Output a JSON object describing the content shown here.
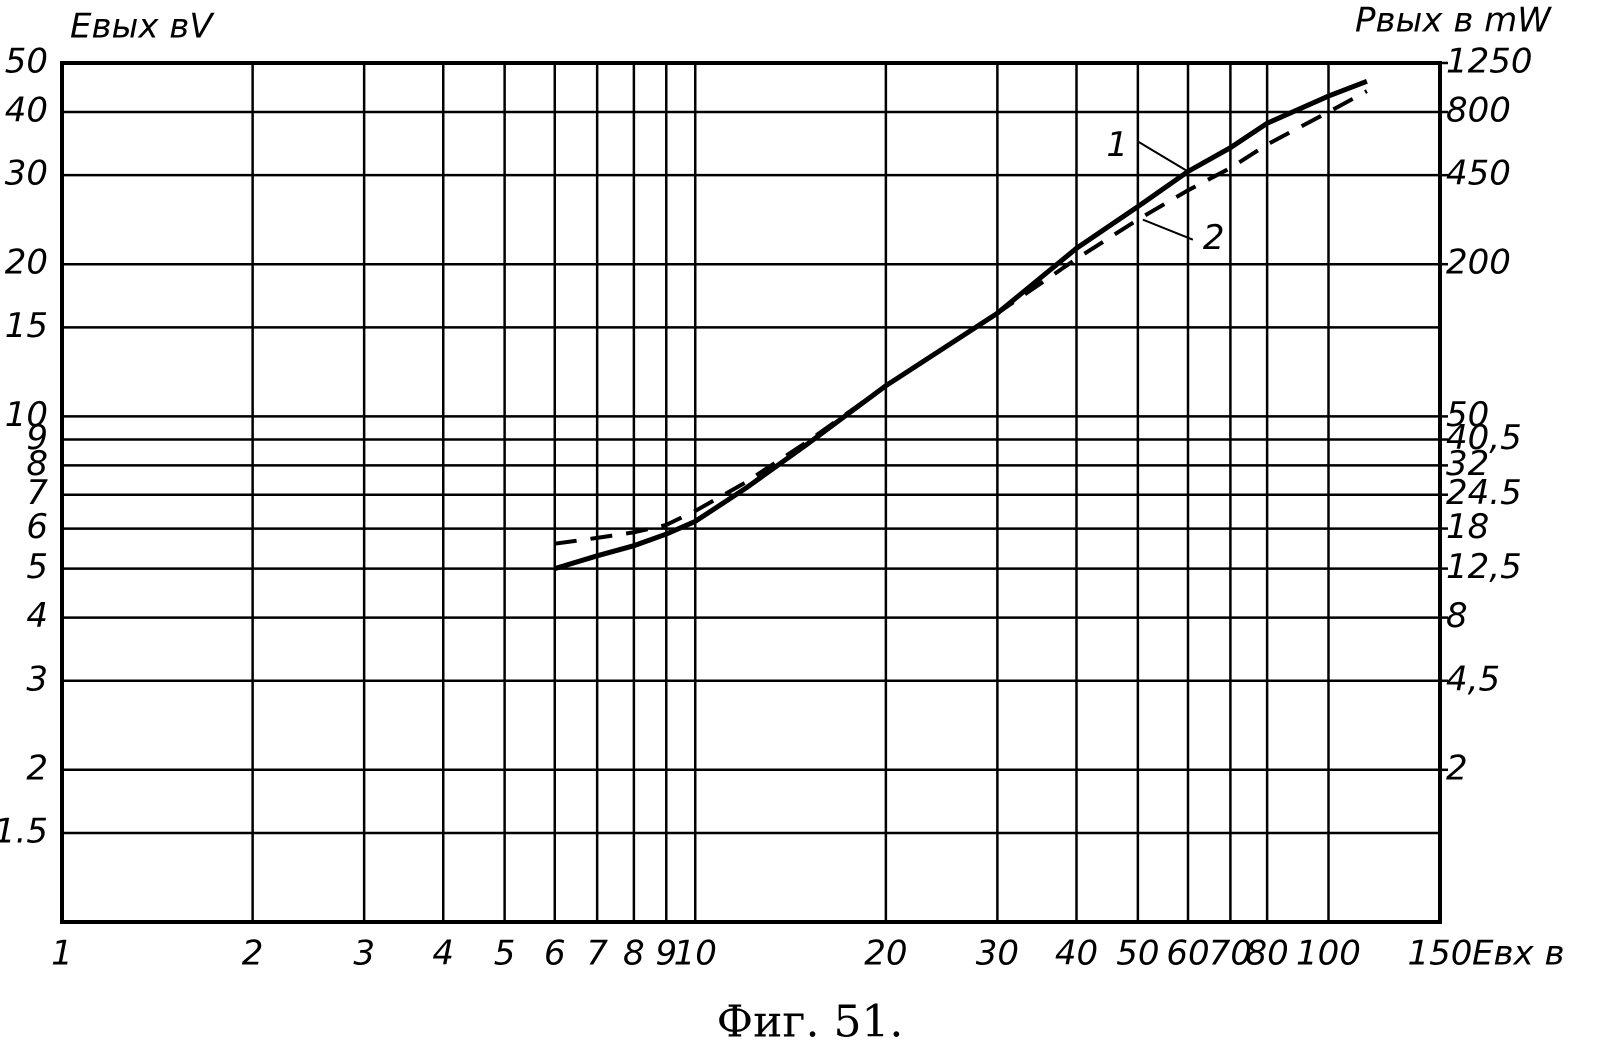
{
  "chart_data": {
    "type": "line",
    "title": "Фиг. 51.",
    "y_label": "Eвых вV",
    "y2_label": "Pвых в mW",
    "x_label": "Eвх в",
    "log_x": true,
    "log_y": true,
    "grid": true,
    "x": [
      6,
      7,
      8,
      9,
      10,
      12,
      15,
      20,
      30,
      40,
      50,
      60,
      70,
      80,
      100,
      115
    ],
    "series": [
      {
        "name": "1",
        "color": "#000000",
        "dash": false,
        "values": [
          5,
          5.3,
          5.55,
          5.85,
          6.2,
          7.2,
          8.8,
          11.5,
          16,
          21.5,
          26,
          30.5,
          34,
          38,
          43,
          46
        ]
      },
      {
        "name": "2",
        "color": "#000000",
        "dash": true,
        "values": [
          5.6,
          5.75,
          5.9,
          6.1,
          6.5,
          7.4,
          8.9,
          11.5,
          16,
          20.5,
          24.5,
          28,
          31,
          34.5,
          40,
          44
        ]
      }
    ],
    "xlim": [
      1,
      150
    ],
    "xticks": [
      1,
      2,
      3,
      4,
      5,
      6,
      7,
      8,
      9,
      10,
      20,
      30,
      40,
      50,
      60,
      70,
      80,
      100,
      150
    ],
    "ylim": [
      1,
      50
    ],
    "yticks": [
      1.5,
      2,
      3,
      4,
      5,
      6,
      7,
      8,
      9,
      10,
      15,
      20,
      30,
      40,
      50
    ],
    "y2lim": [
      0.5,
      1250
    ],
    "y2ticks": [
      2,
      {
        "value": 4.5,
        "label": "4,5"
      },
      8,
      {
        "value": 12.5,
        "label": "12,5"
      },
      18,
      24.5,
      32,
      {
        "value": 40.5,
        "label": "40,5"
      },
      50,
      200,
      450,
      800,
      1250
    ]
  }
}
